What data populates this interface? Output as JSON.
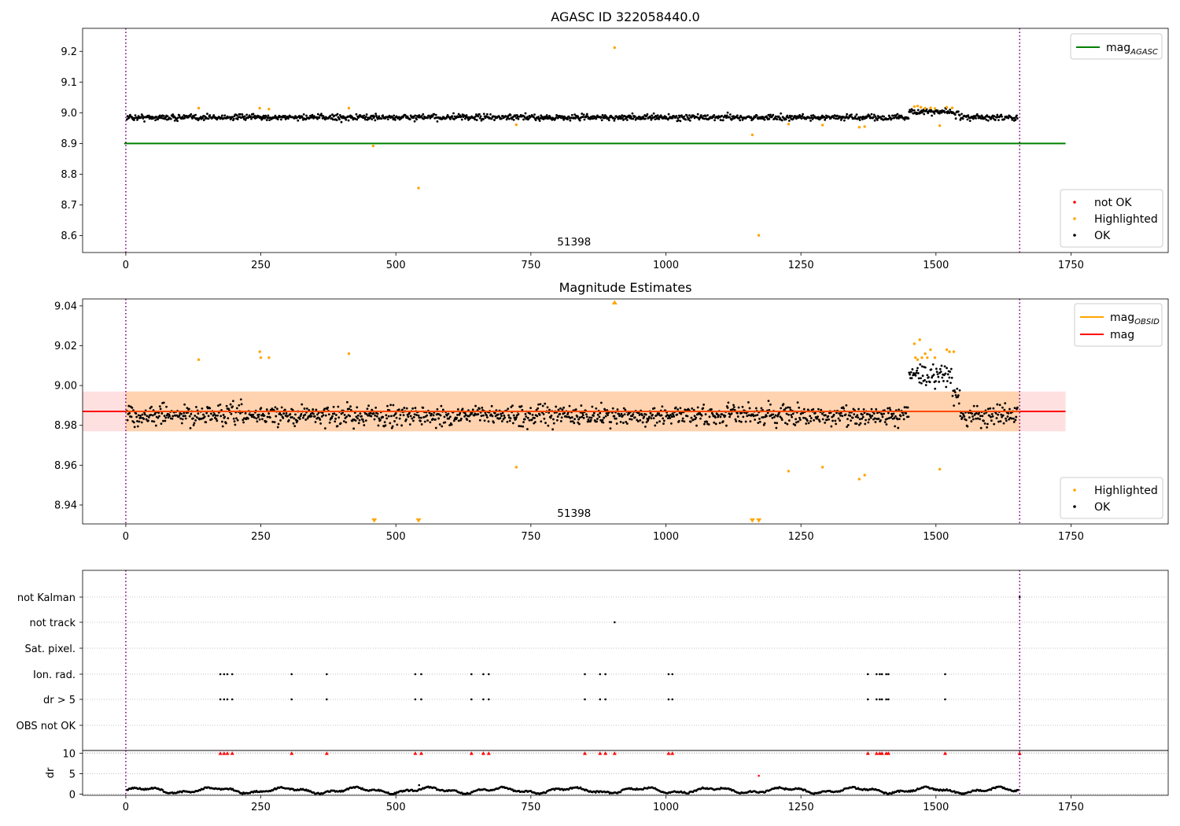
{
  "chart_data": [
    {
      "type": "scatter",
      "title": "AGASC ID 322058440.0",
      "xlabel": "",
      "ylabel": "",
      "xlim": [
        -80,
        1930
      ],
      "ylim": [
        8.545,
        9.275
      ],
      "xticks": [
        0,
        250,
        500,
        750,
        1000,
        1250,
        1500,
        1750
      ],
      "yticks": [
        8.6,
        8.7,
        8.8,
        8.9,
        9.0,
        9.1,
        9.2
      ],
      "ytick_decimals": 1,
      "annotation": "51398",
      "obs_boundaries": [
        0,
        1655
      ],
      "mag_agasc": 8.9,
      "ok_series": {
        "name": "OK",
        "color": "#000000",
        "baseline": 8.985,
        "spread": 0.018
      },
      "highlighted_points": [
        [
          135,
          9.015
        ],
        [
          248,
          9.015
        ],
        [
          265,
          9.012
        ],
        [
          413,
          9.015
        ],
        [
          458,
          8.892
        ],
        [
          542,
          8.755
        ],
        [
          723,
          8.961
        ],
        [
          905,
          9.212
        ],
        [
          1160,
          8.928
        ],
        [
          1172,
          8.601
        ],
        [
          1227,
          8.963
        ],
        [
          1290,
          8.96
        ],
        [
          1358,
          8.953
        ],
        [
          1368,
          8.955
        ],
        [
          1460,
          9.02
        ],
        [
          1466,
          9.022
        ],
        [
          1472,
          9.018
        ],
        [
          1480,
          9.015
        ],
        [
          1490,
          9.016
        ],
        [
          1498,
          9.014
        ],
        [
          1507,
          8.958
        ],
        [
          1520,
          9.018
        ],
        [
          1530,
          9.016
        ]
      ],
      "legend_lines": [
        {
          "label": "mag",
          "sub": "AGASC",
          "color": "#008000"
        }
      ],
      "legend_points": [
        {
          "label": "not OK",
          "color": "#ff0000"
        },
        {
          "label": "Highlighted",
          "color": "#ffa500"
        },
        {
          "label": "OK",
          "color": "#000000"
        }
      ]
    },
    {
      "type": "scatter",
      "title": "Magnitude Estimates",
      "xlabel": "",
      "ylabel": "",
      "xlim": [
        -80,
        1930
      ],
      "ylim": [
        8.9305,
        9.0435
      ],
      "xticks": [
        0,
        250,
        500,
        750,
        1000,
        1250,
        1500,
        1750
      ],
      "yticks": [
        8.94,
        8.96,
        8.98,
        9.0,
        9.02,
        9.04
      ],
      "ytick_decimals": 2,
      "annotation": "51398",
      "obs_boundaries": [
        0,
        1655
      ],
      "mag": 8.987,
      "mag_band": [
        8.977,
        8.997
      ],
      "ok_series": {
        "name": "OK",
        "color": "#000000",
        "baseline": 8.985,
        "spread": 0.0095
      },
      "highlighted_points": [
        [
          135,
          9.013
        ],
        [
          248,
          9.017
        ],
        [
          250,
          9.014
        ],
        [
          265,
          9.014
        ],
        [
          413,
          9.016
        ],
        [
          723,
          8.959
        ],
        [
          1227,
          8.957
        ],
        [
          1290,
          8.959
        ],
        [
          1358,
          8.953
        ],
        [
          1368,
          8.955
        ],
        [
          1460,
          9.021
        ],
        [
          1462,
          9.014
        ],
        [
          1466,
          9.013
        ],
        [
          1470,
          9.023
        ],
        [
          1474,
          9.014
        ],
        [
          1480,
          9.016
        ],
        [
          1484,
          9.014
        ],
        [
          1490,
          9.018
        ],
        [
          1498,
          9.014
        ],
        [
          1507,
          8.958
        ],
        [
          1520,
          9.018
        ],
        [
          1525,
          9.017
        ],
        [
          1533,
          9.017
        ]
      ],
      "clipped_low": [
        460,
        542,
        1160,
        1172
      ],
      "clipped_high": [
        905
      ],
      "legend_lines": [
        {
          "label": "mag",
          "sub": "OBSID",
          "color": "#ffa500"
        },
        {
          "label": "mag",
          "sub": "",
          "color": "#ff0000"
        }
      ],
      "legend_points": [
        {
          "label": "Highlighted",
          "color": "#ffa500"
        },
        {
          "label": "OK",
          "color": "#000000"
        }
      ]
    },
    {
      "type": "scatter",
      "title": "",
      "xlim": [
        -80,
        1930
      ],
      "xticks": [
        0,
        250,
        500,
        750,
        1000,
        1250,
        1500,
        1750
      ],
      "obs_boundaries": [
        0,
        1655
      ],
      "flag_rows": [
        "not Kalman",
        "not track",
        "Sat. pixel.",
        "Ion. rad.",
        "dr > 5",
        "OBS not OK"
      ],
      "flag_points": {
        "not Kalman": [
          1655
        ],
        "not track": [
          905
        ],
        "Sat. pixel.": [],
        "Ion. rad.": [
          175,
          182,
          188,
          197,
          307,
          372,
          536,
          547,
          640,
          662,
          672,
          850,
          878,
          888,
          1005,
          1012,
          1374,
          1390,
          1396,
          1400,
          1408,
          1412,
          1517
        ],
        "dr > 5": [
          175,
          182,
          188,
          197,
          307,
          372,
          536,
          547,
          640,
          662,
          672,
          850,
          878,
          888,
          1005,
          1012,
          1374,
          1390,
          1396,
          1400,
          1408,
          1412,
          1517
        ],
        "OBS not OK": []
      },
      "dr": {
        "ylabel": "dr",
        "ylim": [
          -0.3,
          10.7
        ],
        "yticks": [
          0,
          5,
          10
        ],
        "clipped_at_10": [
          175,
          182,
          188,
          197,
          307,
          372,
          536,
          547,
          640,
          662,
          672,
          850,
          878,
          888,
          905,
          1005,
          1012,
          1374,
          1390,
          1396,
          1400,
          1408,
          1412,
          1517,
          1655
        ],
        "outliers": [
          [
            1172,
            4.5
          ],
          [
            543,
            2.2
          ]
        ],
        "baseline": 0.9
      }
    }
  ]
}
